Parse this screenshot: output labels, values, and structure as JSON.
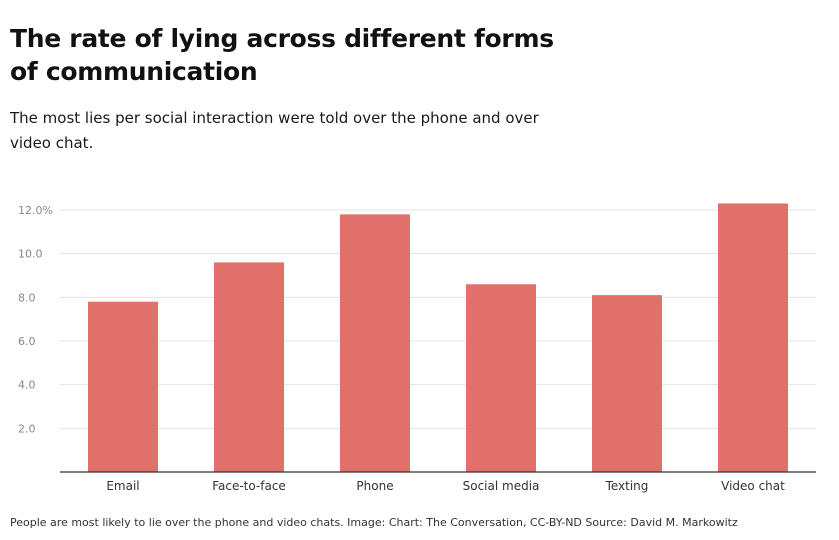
{
  "title": "The rate of lying across different forms of communication",
  "subtitle": "The most lies per social interaction were told over the phone and over video chat.",
  "caption": "People are most likely to lie over the phone and video chats. Image: Chart: The Conversation, CC-BY-ND Source: David M. Markowitz",
  "colors": {
    "bar": "#e07069",
    "grid": "#e3e3e3",
    "axis": "#333333"
  },
  "chart_data": {
    "type": "bar",
    "title": "The rate of lying across different forms of communication",
    "subtitle": "The most lies per social interaction were told over the phone and over video chat.",
    "xlabel": "",
    "ylabel": "",
    "categories": [
      "Email",
      "Face-to-face",
      "Phone",
      "Social media",
      "Texting",
      "Video chat"
    ],
    "values": [
      7.8,
      9.6,
      11.8,
      8.6,
      8.1,
      12.3
    ],
    "ylim": [
      0,
      12.0
    ],
    "yticks": [
      {
        "value": 2.0,
        "label": "2.0"
      },
      {
        "value": 4.0,
        "label": "4.0"
      },
      {
        "value": 6.0,
        "label": "6.0"
      },
      {
        "value": 8.0,
        "label": "8.0"
      },
      {
        "value": 10.0,
        "label": "10.0"
      },
      {
        "value": 12.0,
        "label": "12.0%"
      }
    ],
    "grid": true,
    "legend": "none"
  }
}
